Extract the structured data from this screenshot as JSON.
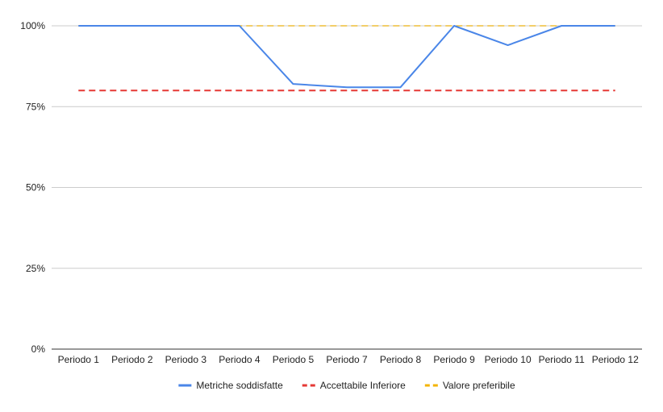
{
  "chart_data": {
    "type": "line",
    "categories": [
      "Periodo 1",
      "Periodo 2",
      "Periodo 3",
      "Periodo 4",
      "Periodo 5",
      "Periodo 7",
      "Periodo 8",
      "Periodo 9",
      "Periodo 10",
      "Periodo 11",
      "Periodo 12"
    ],
    "y_ticks": [
      "0%",
      "25%",
      "50%",
      "75%",
      "100%"
    ],
    "ylim": [
      0,
      100
    ],
    "grid": true,
    "legend_position": "bottom",
    "series": [
      {
        "name": "Metriche soddisfatte",
        "color": "#4a86e8",
        "style": "solid",
        "values": [
          100,
          100,
          100,
          100,
          82,
          81,
          81,
          100,
          94,
          100,
          100
        ]
      },
      {
        "name": "Accettabile Inferiore",
        "color": "#e53935",
        "style": "dashed",
        "values": [
          80,
          80,
          80,
          80,
          80,
          80,
          80,
          80,
          80,
          80,
          80
        ]
      },
      {
        "name": "Valore preferibile",
        "color": "#f4b400",
        "style": "dashed",
        "values": [
          100,
          100,
          100,
          100,
          100,
          100,
          100,
          100,
          100,
          100,
          100
        ]
      }
    ]
  }
}
